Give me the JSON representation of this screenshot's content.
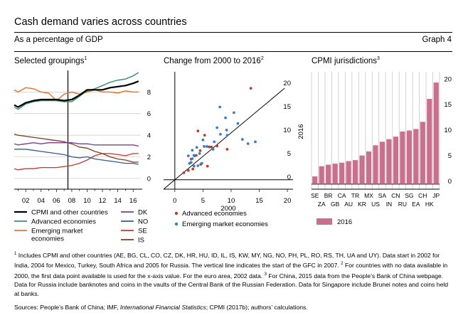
{
  "header": {
    "title": "Cash demand varies across countries",
    "subtitle": "As a percentage of GDP",
    "graph_number": "Graph 4"
  },
  "panels": {
    "left": {
      "title": "Selected groupings",
      "sup": "1"
    },
    "middle": {
      "title": "Change from 2000 to 2016",
      "sup": "2"
    },
    "right": {
      "title": "CPMI jurisdictions",
      "sup": "3"
    }
  },
  "chart_data": [
    {
      "type": "line",
      "panel": "left",
      "ylim": [
        -1,
        10
      ],
      "xlim": [
        2000.5,
        2017
      ],
      "y_ticks": [
        0,
        2,
        4,
        6,
        8
      ],
      "x_ticks": [
        "02",
        "04",
        "06",
        "08",
        "10",
        "12",
        "14",
        "16"
      ],
      "x_tick_years": [
        2002,
        2004,
        2006,
        2008,
        2010,
        2012,
        2014,
        2016
      ],
      "vertical_line_year": 2007.5,
      "grid": "horizontal",
      "legend_position": "bottom",
      "series": [
        {
          "name": "CPMI and other countries",
          "color": "#000000",
          "width": 2.2,
          "x": [
            2000.5,
            2001,
            2002,
            2003,
            2004,
            2005,
            2006,
            2007,
            2008,
            2009,
            2010,
            2011,
            2012,
            2013,
            2014,
            2015,
            2016,
            2016.7
          ],
          "y": [
            6.8,
            6.6,
            7.0,
            7.2,
            7.3,
            7.3,
            7.3,
            7.2,
            7.3,
            7.7,
            8.2,
            8.2,
            8.2,
            8.4,
            8.5,
            8.6,
            8.8,
            9.0
          ]
        },
        {
          "name": "Advanced economies",
          "color": "#3b8f6f",
          "width": 1.5,
          "x": [
            2000.5,
            2001,
            2002,
            2003,
            2004,
            2005,
            2006,
            2007,
            2008,
            2009,
            2010,
            2011,
            2012,
            2013,
            2014,
            2015,
            2016,
            2016.7
          ],
          "y": [
            6.6,
            6.4,
            6.9,
            7.1,
            7.2,
            7.2,
            7.2,
            7.1,
            7.1,
            7.6,
            8.1,
            8.3,
            8.6,
            8.9,
            9.1,
            9.2,
            9.5,
            9.8
          ]
        },
        {
          "name": "Emerging market economies",
          "color": "#e07a35",
          "width": 1.5,
          "x": [
            2000.5,
            2001,
            2002,
            2003,
            2004,
            2005,
            2006,
            2007,
            2008,
            2009,
            2010,
            2011,
            2012,
            2013,
            2014,
            2015,
            2016,
            2016.7
          ],
          "y": [
            8.2,
            8.0,
            8.4,
            8.3,
            8.0,
            7.9,
            7.2,
            7.8,
            8.0,
            7.8,
            8.0,
            8.2,
            8.0,
            8.0,
            7.9,
            8.1,
            8.0,
            8.0
          ]
        },
        {
          "name": "DK",
          "color": "#7b3f8c",
          "width": 1.3,
          "x": [
            2000.5,
            2001,
            2002,
            2003,
            2004,
            2005,
            2006,
            2007,
            2008,
            2009,
            2010,
            2011,
            2012,
            2013,
            2014,
            2015,
            2016,
            2016.7
          ],
          "y": [
            3.2,
            3.1,
            3.2,
            3.3,
            3.2,
            3.3,
            3.3,
            3.3,
            3.3,
            3.2,
            3.2,
            3.1,
            3.1,
            3.1,
            3.1,
            3.1,
            3.1,
            3.0
          ]
        },
        {
          "name": "NO",
          "color": "#2f5e8e",
          "width": 1.3,
          "x": [
            2000.5,
            2001,
            2002,
            2003,
            2004,
            2005,
            2006,
            2007,
            2008,
            2009,
            2010,
            2011,
            2012,
            2013,
            2014,
            2015,
            2016,
            2016.7
          ],
          "y": [
            2.7,
            2.7,
            2.7,
            2.6,
            2.5,
            2.4,
            2.3,
            2.2,
            2.0,
            1.9,
            2.0,
            1.8,
            1.7,
            1.6,
            1.5,
            1.4,
            1.4,
            1.3
          ]
        },
        {
          "name": "SE",
          "color": "#c0392b",
          "width": 1.3,
          "x": [
            2000.5,
            2001,
            2002,
            2003,
            2004,
            2005,
            2006,
            2007,
            2008,
            2009,
            2010,
            2011,
            2012,
            2013,
            2014,
            2015,
            2016,
            2016.7
          ],
          "y": [
            0.9,
            0.8,
            0.9,
            0.9,
            1.0,
            1.0,
            1.0,
            1.1,
            1.2,
            1.4,
            1.7,
            2.1,
            2.3,
            2.3,
            2.2,
            2.1,
            2.3,
            2.3
          ]
        },
        {
          "name": "IS",
          "color": "#7a3e1f",
          "width": 1.3,
          "x": [
            2000.5,
            2001,
            2002,
            2003,
            2004,
            2005,
            2006,
            2007,
            2008,
            2009,
            2010,
            2011,
            2012,
            2013,
            2014,
            2015,
            2016,
            2016.7
          ],
          "y": [
            4.1,
            4.0,
            3.9,
            3.8,
            3.7,
            3.6,
            3.5,
            3.4,
            3.2,
            2.9,
            2.8,
            2.5,
            2.3,
            2.0,
            1.8,
            1.7,
            1.5,
            1.5
          ]
        }
      ]
    },
    {
      "type": "scatter",
      "panel": "middle",
      "xlabel": "2000",
      "ylabel": "2016",
      "xlim": [
        -2,
        21
      ],
      "ylim": [
        -2,
        23
      ],
      "x_ticks": [
        0,
        5,
        10,
        15,
        20
      ],
      "y_ticks": [
        0,
        5,
        10,
        15,
        20
      ],
      "vertical_line_x": 0,
      "diagonal_line": true,
      "series": [
        {
          "name": "Advanced economies",
          "color": "#c0392b",
          "x": [
            13.5,
            4.1,
            5.3,
            6.5,
            4.5,
            3.4,
            2.9,
            4.6,
            3.2,
            1.6,
            5.8,
            6.1,
            9.3,
            7.5,
            3.8,
            2.4
          ],
          "y": [
            19.5,
            10.4,
            9.5,
            7.0,
            6.2,
            5.2,
            4.4,
            3.3,
            2.3,
            1.5,
            2.9,
            7.0,
            6.5,
            7.2,
            5.2,
            2.0
          ]
        },
        {
          "name": "Emerging market economies",
          "color": "#3a7dc4",
          "x": [
            8.0,
            9.0,
            10.5,
            7.5,
            9.2,
            11.2,
            9.3,
            7.0,
            8.1,
            12.0,
            13.0,
            14.3,
            5.0,
            5.2,
            4.4,
            3.5,
            3.1,
            2.9,
            2.6,
            3.1,
            2.4,
            3.9,
            4.8,
            3.4,
            5.7,
            6.8,
            4.1
          ],
          "y": [
            15.5,
            13.2,
            14.3,
            11.1,
            10.6,
            12.0,
            9.5,
            8.1,
            9.7,
            8.6,
            7.7,
            8.1,
            8.5,
            7.1,
            5.6,
            5.1,
            4.5,
            3.7,
            3.5,
            6.3,
            5.1,
            6.9,
            3.5,
            2.9,
            7.1,
            6.5,
            3.0
          ]
        }
      ]
    },
    {
      "type": "bar",
      "panel": "right",
      "ylim": [
        -1,
        22
      ],
      "y_ticks": [
        0,
        5,
        10,
        15,
        20
      ],
      "grid": "vertical",
      "legend_position": "bottom",
      "categories": [
        "SE",
        "ZA",
        "BR",
        "GB",
        "CA",
        "AU",
        "TR",
        "KR",
        "MX",
        "US",
        "SA",
        "IN",
        "CN",
        "RU",
        "SG",
        "EA",
        "CH",
        "HK",
        "JP"
      ],
      "series": [
        {
          "name": "2016",
          "color": "#c9708e",
          "values": [
            1.5,
            3.5,
            3.8,
            4.0,
            4.2,
            4.5,
            4.7,
            5.6,
            6.4,
            7.6,
            8.3,
            8.8,
            9.3,
            10.3,
            10.5,
            10.8,
            12.2,
            16.7,
            19.9
          ]
        }
      ]
    }
  ],
  "footnotes": [
    {
      "sup": "1",
      "text": " Includes CPMI and other countries (AE, BG, CL, CO, CZ, DK, HR, HU, ID, IL, IS, KW, MY, NG, NO, PH, PL, RO, RS, TH, UA and UY). Data start in 2002 for India, 2004 for Mexico, Turkey, South Africa and 2005 for Russia. The vertical line indicates the start of the GFC in 2007. "
    },
    {
      "sup": "2",
      "text": " For countries with no data available in 2000, the first data point available is used for the x-axis value. For the euro area, 2002 data. "
    },
    {
      "sup": "3",
      "text": " For China, 2015 data from the People’s Bank of China webpage. Data for Russia include banknotes and coins in the vaults of the Central Bank of the Russian Federation. Data for Singapore include Brunei notes and coins held at banks."
    }
  ],
  "sources": {
    "prefix": "Sources: People’s Bank of China; IMF, ",
    "italic": "International Financial Statistics",
    "suffix": "; CPMI (2017b); authors’ calculations."
  }
}
